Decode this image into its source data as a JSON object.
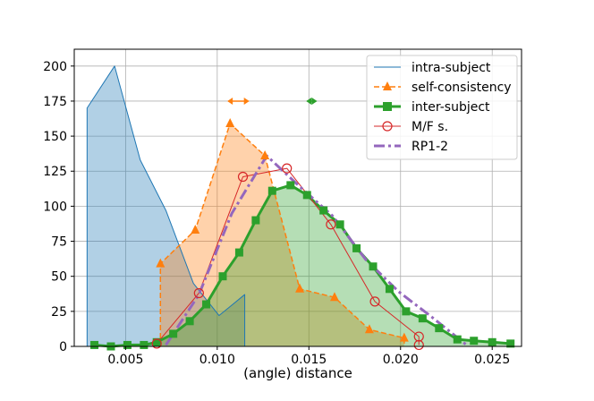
{
  "chart_data": {
    "type": "area",
    "xlabel": "(angle) distance",
    "ylabel": "",
    "xlim": [
      0.0022,
      0.0266
    ],
    "ylim": [
      0,
      212
    ],
    "xticks": [
      0.005,
      0.01,
      0.015,
      0.02,
      0.025
    ],
    "xtick_labels": [
      "0.005",
      "0.010",
      "0.015",
      "0.020",
      "0.025"
    ],
    "yticks": [
      0,
      25,
      50,
      75,
      100,
      125,
      150,
      175,
      200
    ],
    "ytick_labels": [
      "0",
      "25",
      "50",
      "75",
      "100",
      "125",
      "150",
      "175",
      "200"
    ],
    "grid": true,
    "legend_position": "top-right",
    "series": [
      {
        "name": "intra-subject",
        "color": "#1f77b4",
        "style": "solid-thin",
        "marker": "none",
        "filled": true,
        "points": [
          [
            0.0029,
            0
          ],
          [
            0.0029,
            170
          ],
          [
            0.0044,
            200
          ],
          [
            0.0058,
            133
          ],
          [
            0.0072,
            97
          ],
          [
            0.0087,
            45
          ],
          [
            0.0101,
            22
          ],
          [
            0.0115,
            37
          ],
          [
            0.0115,
            0
          ]
        ]
      },
      {
        "name": "self-consistency",
        "color": "#ff7f0e",
        "style": "dashed",
        "marker": "triangle",
        "filled": true,
        "points": [
          [
            0.0069,
            0
          ],
          [
            0.0069,
            59
          ],
          [
            0.0088,
            83
          ],
          [
            0.0107,
            159
          ],
          [
            0.0126,
            136
          ],
          [
            0.0145,
            41
          ],
          [
            0.0164,
            35
          ],
          [
            0.0183,
            12
          ],
          [
            0.0202,
            6
          ],
          [
            0.0202,
            0
          ]
        ]
      },
      {
        "name": "inter-subject",
        "color": "#2ca02c",
        "style": "solid-thick",
        "marker": "square",
        "filled": true,
        "points": [
          [
            0.0033,
            1
          ],
          [
            0.0042,
            0
          ],
          [
            0.0051,
            1
          ],
          [
            0.006,
            1
          ],
          [
            0.0067,
            3
          ],
          [
            0.0076,
            9
          ],
          [
            0.0085,
            18
          ],
          [
            0.0094,
            30
          ],
          [
            0.0103,
            50
          ],
          [
            0.0112,
            67
          ],
          [
            0.0121,
            90
          ],
          [
            0.013,
            111
          ],
          [
            0.014,
            115
          ],
          [
            0.0149,
            108
          ],
          [
            0.0158,
            97
          ],
          [
            0.0167,
            87
          ],
          [
            0.0176,
            70
          ],
          [
            0.0185,
            57
          ],
          [
            0.0194,
            41
          ],
          [
            0.0203,
            25
          ],
          [
            0.0212,
            20
          ],
          [
            0.0221,
            13
          ],
          [
            0.0231,
            5
          ],
          [
            0.024,
            4
          ],
          [
            0.025,
            3
          ],
          [
            0.026,
            2
          ]
        ]
      },
      {
        "name": "M/F s.",
        "color": "#d62728",
        "style": "solid-thin",
        "marker": "circle-open",
        "filled": false,
        "points": [
          [
            0.0067,
            2
          ],
          [
            0.009,
            38
          ],
          [
            0.0114,
            121
          ],
          [
            0.0138,
            127
          ],
          [
            0.0162,
            87
          ],
          [
            0.0186,
            32
          ],
          [
            0.021,
            7
          ],
          [
            0.021,
            1
          ]
        ]
      },
      {
        "name": "RP1-2",
        "color": "#9467bd",
        "style": "dashdot-thick",
        "marker": "none",
        "filled": false,
        "points": [
          [
            0.0072,
            1
          ],
          [
            0.009,
            37
          ],
          [
            0.0108,
            95
          ],
          [
            0.0127,
            136
          ],
          [
            0.0145,
            114
          ],
          [
            0.0163,
            93
          ],
          [
            0.0181,
            62
          ],
          [
            0.0199,
            39
          ],
          [
            0.0217,
            21
          ],
          [
            0.0236,
            1
          ]
        ]
      }
    ],
    "annotations": [
      {
        "type": "range-marker",
        "color": "#ff7f0e",
        "x": [
          0.0106,
          0.0117
        ],
        "y": 175
      },
      {
        "type": "range-marker",
        "color": "#2ca02c",
        "x": [
          0.0149,
          0.0154
        ],
        "y": 175
      }
    ]
  }
}
